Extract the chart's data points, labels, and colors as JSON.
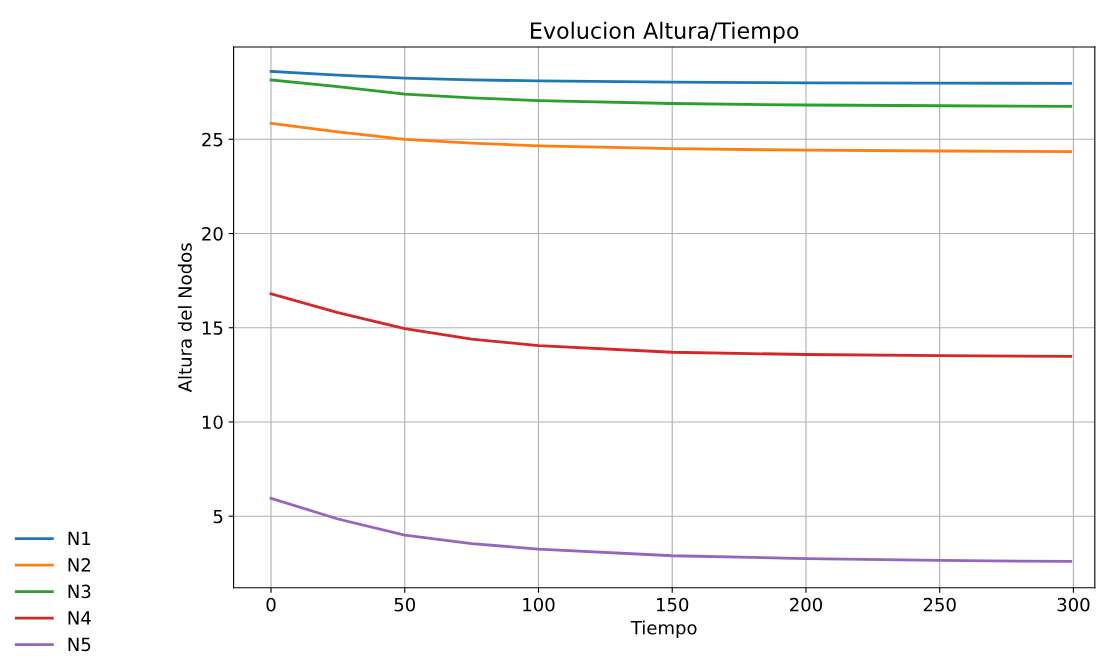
{
  "chart_data": {
    "type": "line",
    "title": "Evolucion Altura/Tiempo",
    "xlabel": "Tiempo",
    "ylabel": "Altura del Nodos",
    "x": [
      0,
      25,
      50,
      75,
      100,
      150,
      200,
      250,
      299
    ],
    "series": [
      {
        "name": "N1",
        "color": "#1f77b4",
        "values": [
          28.6,
          28.4,
          28.25,
          28.15,
          28.1,
          28.03,
          28.0,
          27.98,
          27.97
        ]
      },
      {
        "name": "N2",
        "color": "#ff7f0e",
        "values": [
          25.85,
          25.4,
          25.0,
          24.8,
          24.65,
          24.5,
          24.42,
          24.38,
          24.35
        ]
      },
      {
        "name": "N3",
        "color": "#2ca02c",
        "values": [
          28.15,
          27.8,
          27.4,
          27.2,
          27.05,
          26.9,
          26.82,
          26.78,
          26.75
        ]
      },
      {
        "name": "N4",
        "color": "#d62728",
        "values": [
          16.8,
          15.8,
          14.95,
          14.4,
          14.05,
          13.7,
          13.58,
          13.52,
          13.48
        ]
      },
      {
        "name": "N5",
        "color": "#9467bd",
        "values": [
          5.95,
          4.85,
          4.0,
          3.55,
          3.25,
          2.9,
          2.75,
          2.65,
          2.6
        ]
      }
    ],
    "xlim": [
      -14,
      308
    ],
    "ylim": [
      1.2,
      29.9
    ],
    "xticks": [
      0,
      50,
      100,
      150,
      200,
      250,
      300
    ],
    "yticks": [
      5,
      10,
      15,
      20,
      25
    ],
    "grid": true,
    "legend": "bottom left",
    "marker": "none",
    "line_style": "solid"
  }
}
